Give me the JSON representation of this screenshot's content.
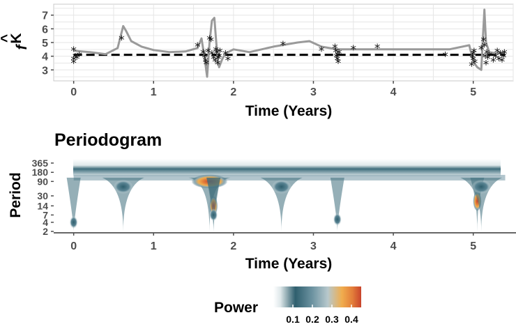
{
  "chart_data": [
    {
      "type": "line",
      "ylabel": "f K̂",
      "ylabel_main": "K",
      "ylabel_prefix": "f",
      "ylabel_hat": "^",
      "xlabel": "Time (Years)",
      "xticks": [
        0,
        1,
        2,
        3,
        4,
        5
      ],
      "yticks": [
        3,
        4,
        5,
        6,
        7
      ],
      "xlim": [
        -0.25,
        5.5
      ],
      "ylim": [
        2.2,
        7.8
      ],
      "grid": true,
      "series": [
        {
          "style": "solid-gray",
          "x": [
            0.0,
            0.2,
            0.4,
            0.55,
            0.62,
            0.66,
            0.72,
            0.85,
            1.0,
            1.2,
            1.4,
            1.55,
            1.6,
            1.64,
            1.67,
            1.7,
            1.73,
            1.76,
            1.78,
            1.8,
            1.82,
            1.86,
            1.9,
            2.0,
            2.2,
            2.5,
            2.8,
            2.95,
            3.1,
            3.2,
            3.3,
            3.5,
            3.8,
            4.2,
            4.7,
            4.95,
            5.0,
            5.05,
            5.1,
            5.12,
            5.14,
            5.16,
            5.2,
            5.3,
            5.4
          ],
          "y": [
            4.4,
            4.3,
            4.15,
            4.6,
            6.2,
            5.8,
            5.1,
            4.7,
            4.45,
            4.3,
            4.35,
            4.6,
            5.3,
            3.8,
            2.5,
            5.0,
            6.6,
            6.8,
            5.3,
            3.9,
            3.2,
            3.8,
            4.2,
            4.5,
            4.3,
            4.7,
            5.0,
            5.1,
            4.7,
            4.6,
            4.5,
            4.5,
            4.5,
            4.5,
            4.5,
            4.8,
            3.6,
            3.2,
            3.0,
            5.2,
            7.4,
            5.0,
            4.3,
            4.2,
            4.3
          ]
        },
        {
          "style": "dashed-black",
          "x": [
            0.0,
            5.4
          ],
          "y": [
            4.1,
            4.1
          ]
        }
      ],
      "points": {
        "marker": "*",
        "x": [
          0.0,
          0.0,
          0.0,
          0.02,
          0.04,
          0.07,
          0.6,
          1.55,
          1.62,
          1.64,
          1.65,
          1.66,
          1.68,
          1.7,
          1.72,
          1.73,
          1.75,
          1.77,
          1.78,
          1.79,
          1.8,
          1.81,
          1.82,
          1.83,
          1.9,
          1.93,
          2.62,
          3.1,
          3.27,
          3.28,
          3.29,
          3.3,
          3.3,
          3.31,
          3.32,
          3.5,
          3.8,
          4.65,
          4.98,
          4.99,
          5.0,
          5.0,
          5.01,
          5.02,
          5.1,
          5.13,
          5.14,
          5.15,
          5.16,
          5.17,
          5.18,
          5.2,
          5.25,
          5.28,
          5.3,
          5.32,
          5.34,
          5.36,
          5.38,
          5.39
        ],
        "y": [
          3.6,
          4.5,
          3.8,
          4.0,
          3.9,
          4.1,
          5.3,
          4.8,
          4.3,
          4.0,
          3.7,
          3.5,
          4.4,
          5.3,
          5.2,
          4.2,
          3.9,
          3.7,
          4.5,
          4.3,
          3.5,
          3.9,
          4.0,
          4.4,
          4.2,
          3.8,
          4.9,
          4.5,
          4.7,
          4.4,
          4.0,
          3.8,
          4.1,
          3.6,
          4.3,
          4.6,
          4.7,
          4.1,
          3.4,
          4.0,
          4.2,
          3.8,
          4.4,
          3.6,
          4.6,
          5.2,
          4.8,
          4.0,
          3.5,
          4.3,
          3.9,
          4.1,
          3.7,
          4.0,
          4.4,
          3.8,
          4.2,
          3.7,
          4.0,
          4.3
        ]
      }
    },
    {
      "type": "heatmap",
      "title": "Periodogram",
      "xlabel": "Time (Years)",
      "ylabel": "Period",
      "xticks": [
        0,
        1,
        2,
        3,
        4,
        5
      ],
      "xlim": [
        -0.25,
        5.5
      ],
      "yticks": [
        2,
        4,
        7,
        14,
        30,
        90,
        180,
        365
      ],
      "yscale": "log2",
      "ylim": [
        2,
        500
      ],
      "colorbar": {
        "label": "Power",
        "ticks": [
          "0.1",
          "0.2",
          "0.3",
          "0.4"
        ],
        "colors": [
          "#ffffff",
          "#dfe8ea",
          "#2f5f6e",
          "#5b8594",
          "#8ca8b2",
          "#f0ad4e",
          "#e37e3a",
          "#c8442c"
        ]
      },
      "hotspots": [
        {
          "t": 0.0,
          "period": 4,
          "power": 0.2
        },
        {
          "t": 0.62,
          "period": 60,
          "power": 0.12
        },
        {
          "t": 1.7,
          "period": 90,
          "power": 0.42
        },
        {
          "t": 1.75,
          "period": 14,
          "power": 0.3
        },
        {
          "t": 1.75,
          "period": 7,
          "power": 0.25
        },
        {
          "t": 2.6,
          "period": 60,
          "power": 0.1
        },
        {
          "t": 3.3,
          "period": 5,
          "power": 0.2
        },
        {
          "t": 5.05,
          "period": 20,
          "power": 0.38
        },
        {
          "t": 5.1,
          "period": 60,
          "power": 0.2
        }
      ]
    }
  ]
}
